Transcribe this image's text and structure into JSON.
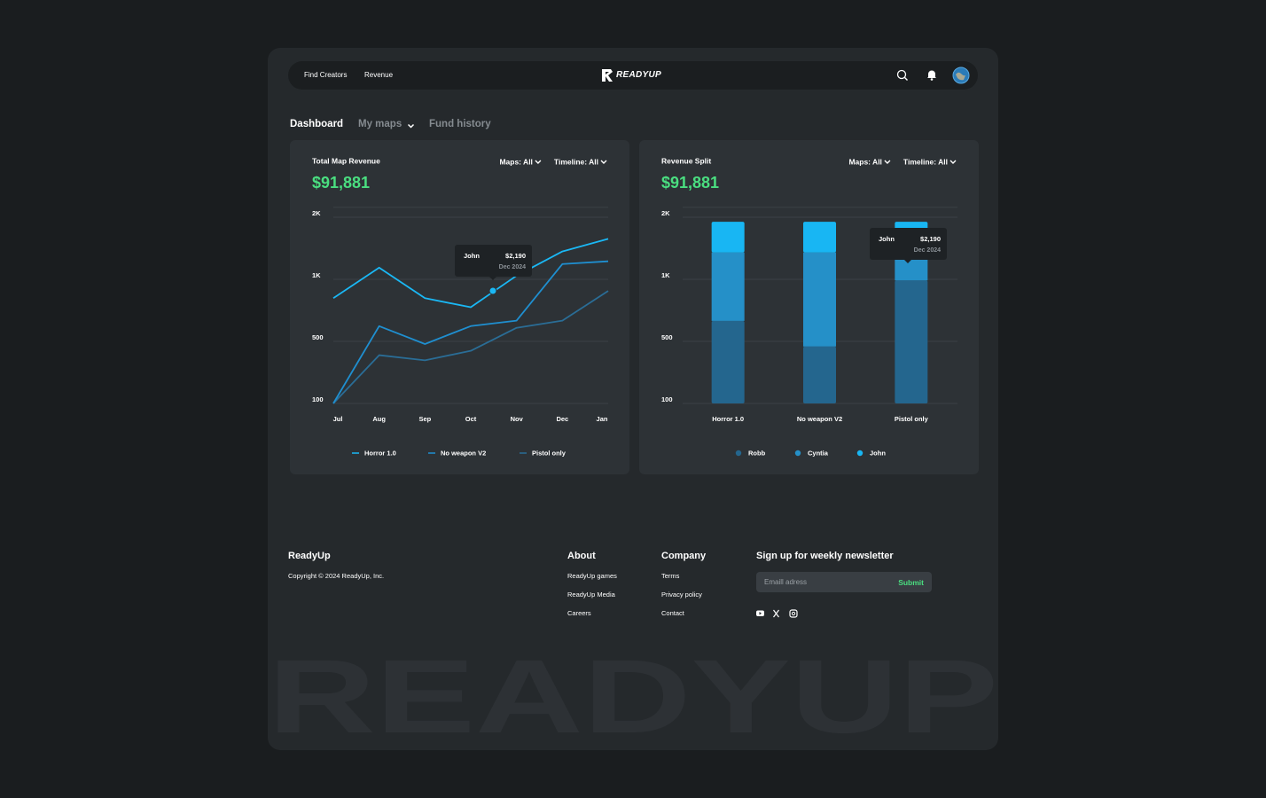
{
  "nav": {
    "links": [
      "Find Creators",
      "Revenue"
    ],
    "logo": "READYUP"
  },
  "tabs": [
    "Dashboard",
    "My maps",
    "Fund history"
  ],
  "chart_data": [
    {
      "type": "line",
      "title": "Total Map Revenue",
      "total": "$91,881",
      "filters": [
        "Maps: All",
        "Timeline: All"
      ],
      "categories": [
        "Jul",
        "Aug",
        "Sep",
        "Oct",
        "Nov",
        "Dec",
        "Jan"
      ],
      "series": [
        {
          "name": "Horror 1.0",
          "color": "#1ab8f5",
          "values": [
            848,
            1188,
            848,
            775,
            1058,
            1449,
            1652
          ]
        },
        {
          "name": "No weapon V2",
          "color": "#1f8fd0",
          "values": [
            100,
            623,
            483,
            623,
            667,
            1246,
            1290
          ]
        },
        {
          "name": "Pistol only",
          "color": "#2a6d96",
          "values": [
            100,
            411,
            378,
            439,
            609,
            667,
            906
          ]
        }
      ],
      "ylim": [
        100,
        2160
      ],
      "yticks": [
        {
          "value": 2000,
          "label": "2K"
        },
        {
          "value": 1000,
          "label": "1K"
        },
        500,
        100
      ],
      "grid": true,
      "tooltip": {
        "name": "John",
        "value": "$2,190",
        "date": "Dec 2024"
      }
    },
    {
      "type": "stacked_bar",
      "title": "Revenue Split",
      "total": "$91,881",
      "filters": [
        "Maps: All",
        "Timeline: All"
      ],
      "categories": [
        "Horror 1.0",
        "No weapon V2",
        "Pistol only"
      ],
      "series": [
        {
          "name": "Robb",
          "color": "#24668e",
          "values": [
            565,
            367,
            891
          ]
        },
        {
          "name": "Cyntia",
          "color": "#2590c8",
          "values": [
            768,
            966,
            442
          ]
        },
        {
          "name": "John",
          "color": "#18b6f3",
          "values": [
            493,
            493,
            493
          ]
        }
      ],
      "ylim": [
        100,
        2160
      ],
      "yticks": [
        {
          "value": 2000,
          "label": "2K"
        },
        {
          "value": 1000,
          "label": "1K"
        },
        500,
        100
      ],
      "grid": true,
      "tooltip": {
        "name": "John",
        "value": "$2,190",
        "date": "Dec 2024"
      }
    }
  ],
  "footer": {
    "brand": "ReadyUp",
    "copyright": "Copyright © 2024 ReadyUp, Inc.",
    "columns": [
      {
        "title": "About",
        "links": [
          "ReadyUp games",
          "ReadyUp Media",
          "Careers"
        ]
      },
      {
        "title": "Company",
        "links": [
          "Terms",
          "Privacy policy",
          "Contact"
        ]
      }
    ],
    "newsletter": {
      "title": "Sign up for weekly newsletter",
      "placeholder": "Emaill adress",
      "button": "Submit"
    }
  },
  "watermark": "READYUP"
}
